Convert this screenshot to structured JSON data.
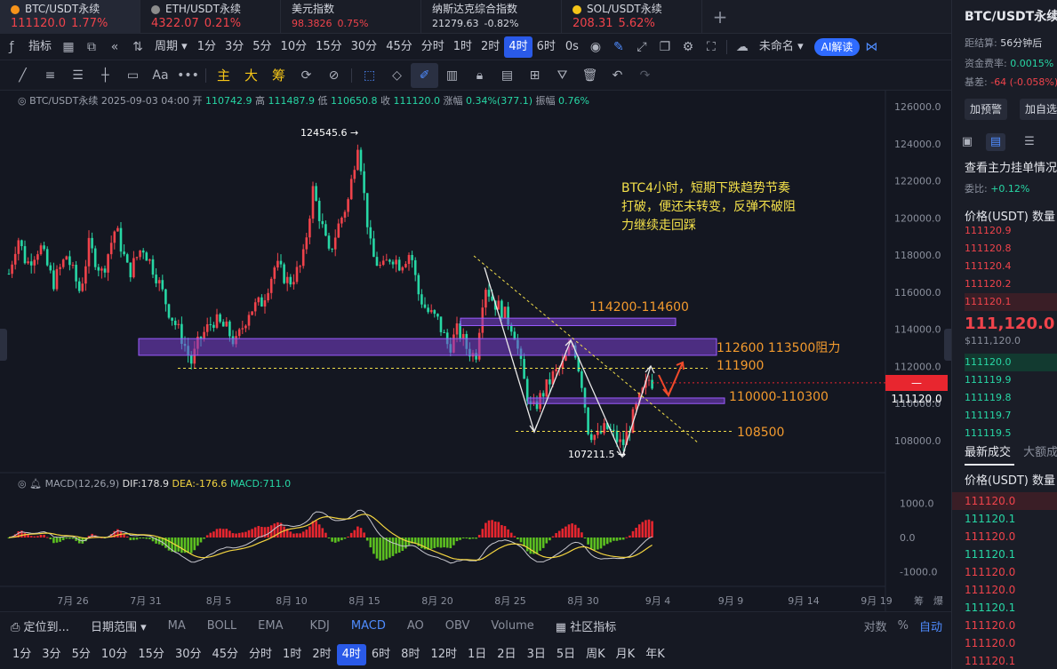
{
  "tabs": [
    {
      "name": "BTC/USDT永续",
      "price": "111120.0",
      "change": "1.77%",
      "color": "#f7931a",
      "active": true
    },
    {
      "name": "ETH/USDT永续",
      "price": "4322.07",
      "change": "0.21%",
      "color": "#8c8c8c",
      "active": false
    },
    {
      "name": "美元指数",
      "price": "98.3826",
      "change": "0.75%",
      "color": "",
      "active": false
    },
    {
      "name": "纳斯达克综合指数",
      "price": "21279.63",
      "change": "-0.82%",
      "color": "",
      "active": false
    },
    {
      "name": "SOL/USDT永续",
      "price": "208.31",
      "change": "5.62%",
      "color": "#f5c518",
      "active": false
    }
  ],
  "add_tab": "+",
  "toolbar1": {
    "indicator_label": "指标",
    "period_label": "周期",
    "timeframes": [
      "1分",
      "3分",
      "5分",
      "10分",
      "15分",
      "30分",
      "45分",
      "分时",
      "1时",
      "2时",
      "4时",
      "6时"
    ],
    "active_timeframe": "4时",
    "zero_s": "0s",
    "layout_name": "未命名",
    "ai_label": "AI解读"
  },
  "toolbar2": {
    "text_tool": "Aa",
    "more_tool": "•••",
    "main_label": "主",
    "big_label": "大",
    "chip_label": "筹"
  },
  "chart": {
    "info": {
      "symbol": "BTC/USDT永续",
      "datetime": "2025-09-03 04:00",
      "open_label": "开",
      "open": "110742.9",
      "high_label": "高",
      "high": "111487.9",
      "low_label": "低",
      "low": "110650.8",
      "close_label": "收",
      "close": "111120.0",
      "change_label": "涨幅",
      "change": "0.34%(377.1)",
      "amp_label": "振幅",
      "amp": "0.76%"
    },
    "macd": {
      "label": "MACD(12,26,9)",
      "dif": "DIF:178.9",
      "dea": "DEA:-176.6",
      "macd": "MACD:711.0"
    },
    "price_axis": [
      "126000.0",
      "124000.0",
      "122000.0",
      "120000.0",
      "118000.0",
      "116000.0",
      "114000.0",
      "112000.0",
      "110000.0",
      "108000.0"
    ],
    "macd_axis": [
      "1000.0",
      "0.0",
      "-1000.0"
    ],
    "date_axis": [
      "7月 26",
      "7月 31",
      "8月 5",
      "8月 10",
      "8月 15",
      "8月 20",
      "8月 25",
      "8月 30",
      "9月 4",
      "9月 9",
      "9月 14",
      "9月 19"
    ],
    "axis_extra": [
      "筹",
      "爆"
    ],
    "high_marker": "124545.6",
    "low_marker": "107211.5",
    "current_price": "111120.0",
    "zones": [
      {
        "label": "114200-114600",
        "low": 114200,
        "high": 114600
      },
      {
        "label": "112600 113500阻力",
        "low": 112600,
        "high": 113500
      },
      {
        "label": "110000-110300",
        "low": 110000,
        "high": 110300
      }
    ],
    "lines": [
      {
        "label": "111900",
        "price": 111900
      },
      {
        "label": "108500",
        "price": 108500
      }
    ],
    "note_lines": [
      "BTC4小时，短期下跌趋势节奏",
      "打破，便还未转变，反弹不破阻",
      "力继续走回踩"
    ],
    "colors": {
      "up": "#f0434b",
      "down": "#27d7a5",
      "zone": "#7a3fd1",
      "guide": "#f3e04a",
      "label": "#f29a2e"
    }
  },
  "indicator_bar": {
    "locate": "定位到...",
    "date_range": "日期范围",
    "items": [
      "MA",
      "BOLL",
      "EMA",
      "KDJ",
      "MACD",
      "AO",
      "OBV",
      "Volume"
    ],
    "active": "MACD",
    "community": "社区指标",
    "right": [
      "对数",
      "%",
      "自动"
    ]
  },
  "tf_bar": [
    "1分",
    "3分",
    "5分",
    "10分",
    "15分",
    "30分",
    "45分",
    "分时",
    "1时",
    "2时",
    "4时",
    "6时",
    "8时",
    "12时",
    "1日",
    "2日",
    "3日",
    "5日",
    "周K",
    "月K",
    "年K"
  ],
  "tf_active": "4时",
  "right_panel": {
    "symbol": "BTC/USDT永续",
    "settle_label": "距结算:",
    "settle_value": "56分钟后",
    "funding_label": "资金费率:",
    "funding_value": "0.0015%",
    "basis_label": "基差:",
    "basis_value": "-64 (-0.058%)",
    "btn_alert": "加预警",
    "btn_watch": "加自选",
    "order_title": "查看主力挂单情况",
    "ratio_label": "委比:",
    "ratio_value": "+0.12%",
    "col_price": "价格(USDT)",
    "col_qty": "数量",
    "asks": [
      "111120.9",
      "111120.8",
      "111120.4",
      "111120.2",
      "111120.1"
    ],
    "last_price": "111,120.0",
    "last_price_sub": "$111,120.0",
    "bids": [
      "111120.0",
      "111119.9",
      "111119.8",
      "111119.7",
      "111119.5"
    ],
    "trades_title": "最新成交",
    "trades_title2": "大额成交",
    "trades": [
      {
        "price": "111120.0",
        "side": "red"
      },
      {
        "price": "111120.1",
        "side": "green"
      },
      {
        "price": "111120.0",
        "side": "red"
      },
      {
        "price": "111120.1",
        "side": "green"
      },
      {
        "price": "111120.0",
        "side": "red"
      },
      {
        "price": "111120.0",
        "side": "red"
      },
      {
        "price": "111120.1",
        "side": "green"
      },
      {
        "price": "111120.0",
        "side": "red"
      },
      {
        "price": "111120.0",
        "side": "red"
      },
      {
        "price": "111120.1",
        "side": "red"
      }
    ]
  }
}
